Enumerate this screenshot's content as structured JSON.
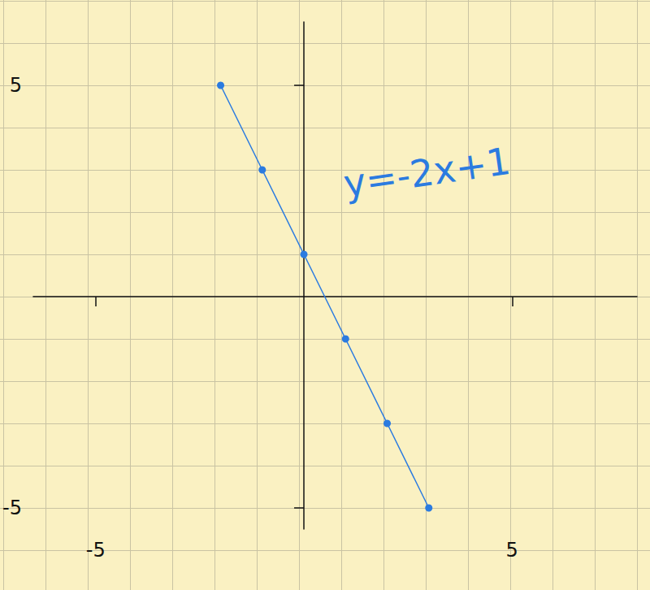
{
  "chart_data": {
    "type": "line",
    "annotation": "y=-2x+1",
    "x": [
      -2,
      -1,
      0,
      1,
      2,
      3
    ],
    "values": [
      5,
      3,
      1,
      -1,
      -3,
      -5
    ],
    "color": "#2b7be0",
    "marker": "circle",
    "xlim": [
      -6.5,
      8
    ],
    "ylim": [
      -5.5,
      6.5
    ],
    "xticks": [
      -5,
      5
    ],
    "yticks": [
      -5,
      5
    ],
    "grid": true
  }
}
